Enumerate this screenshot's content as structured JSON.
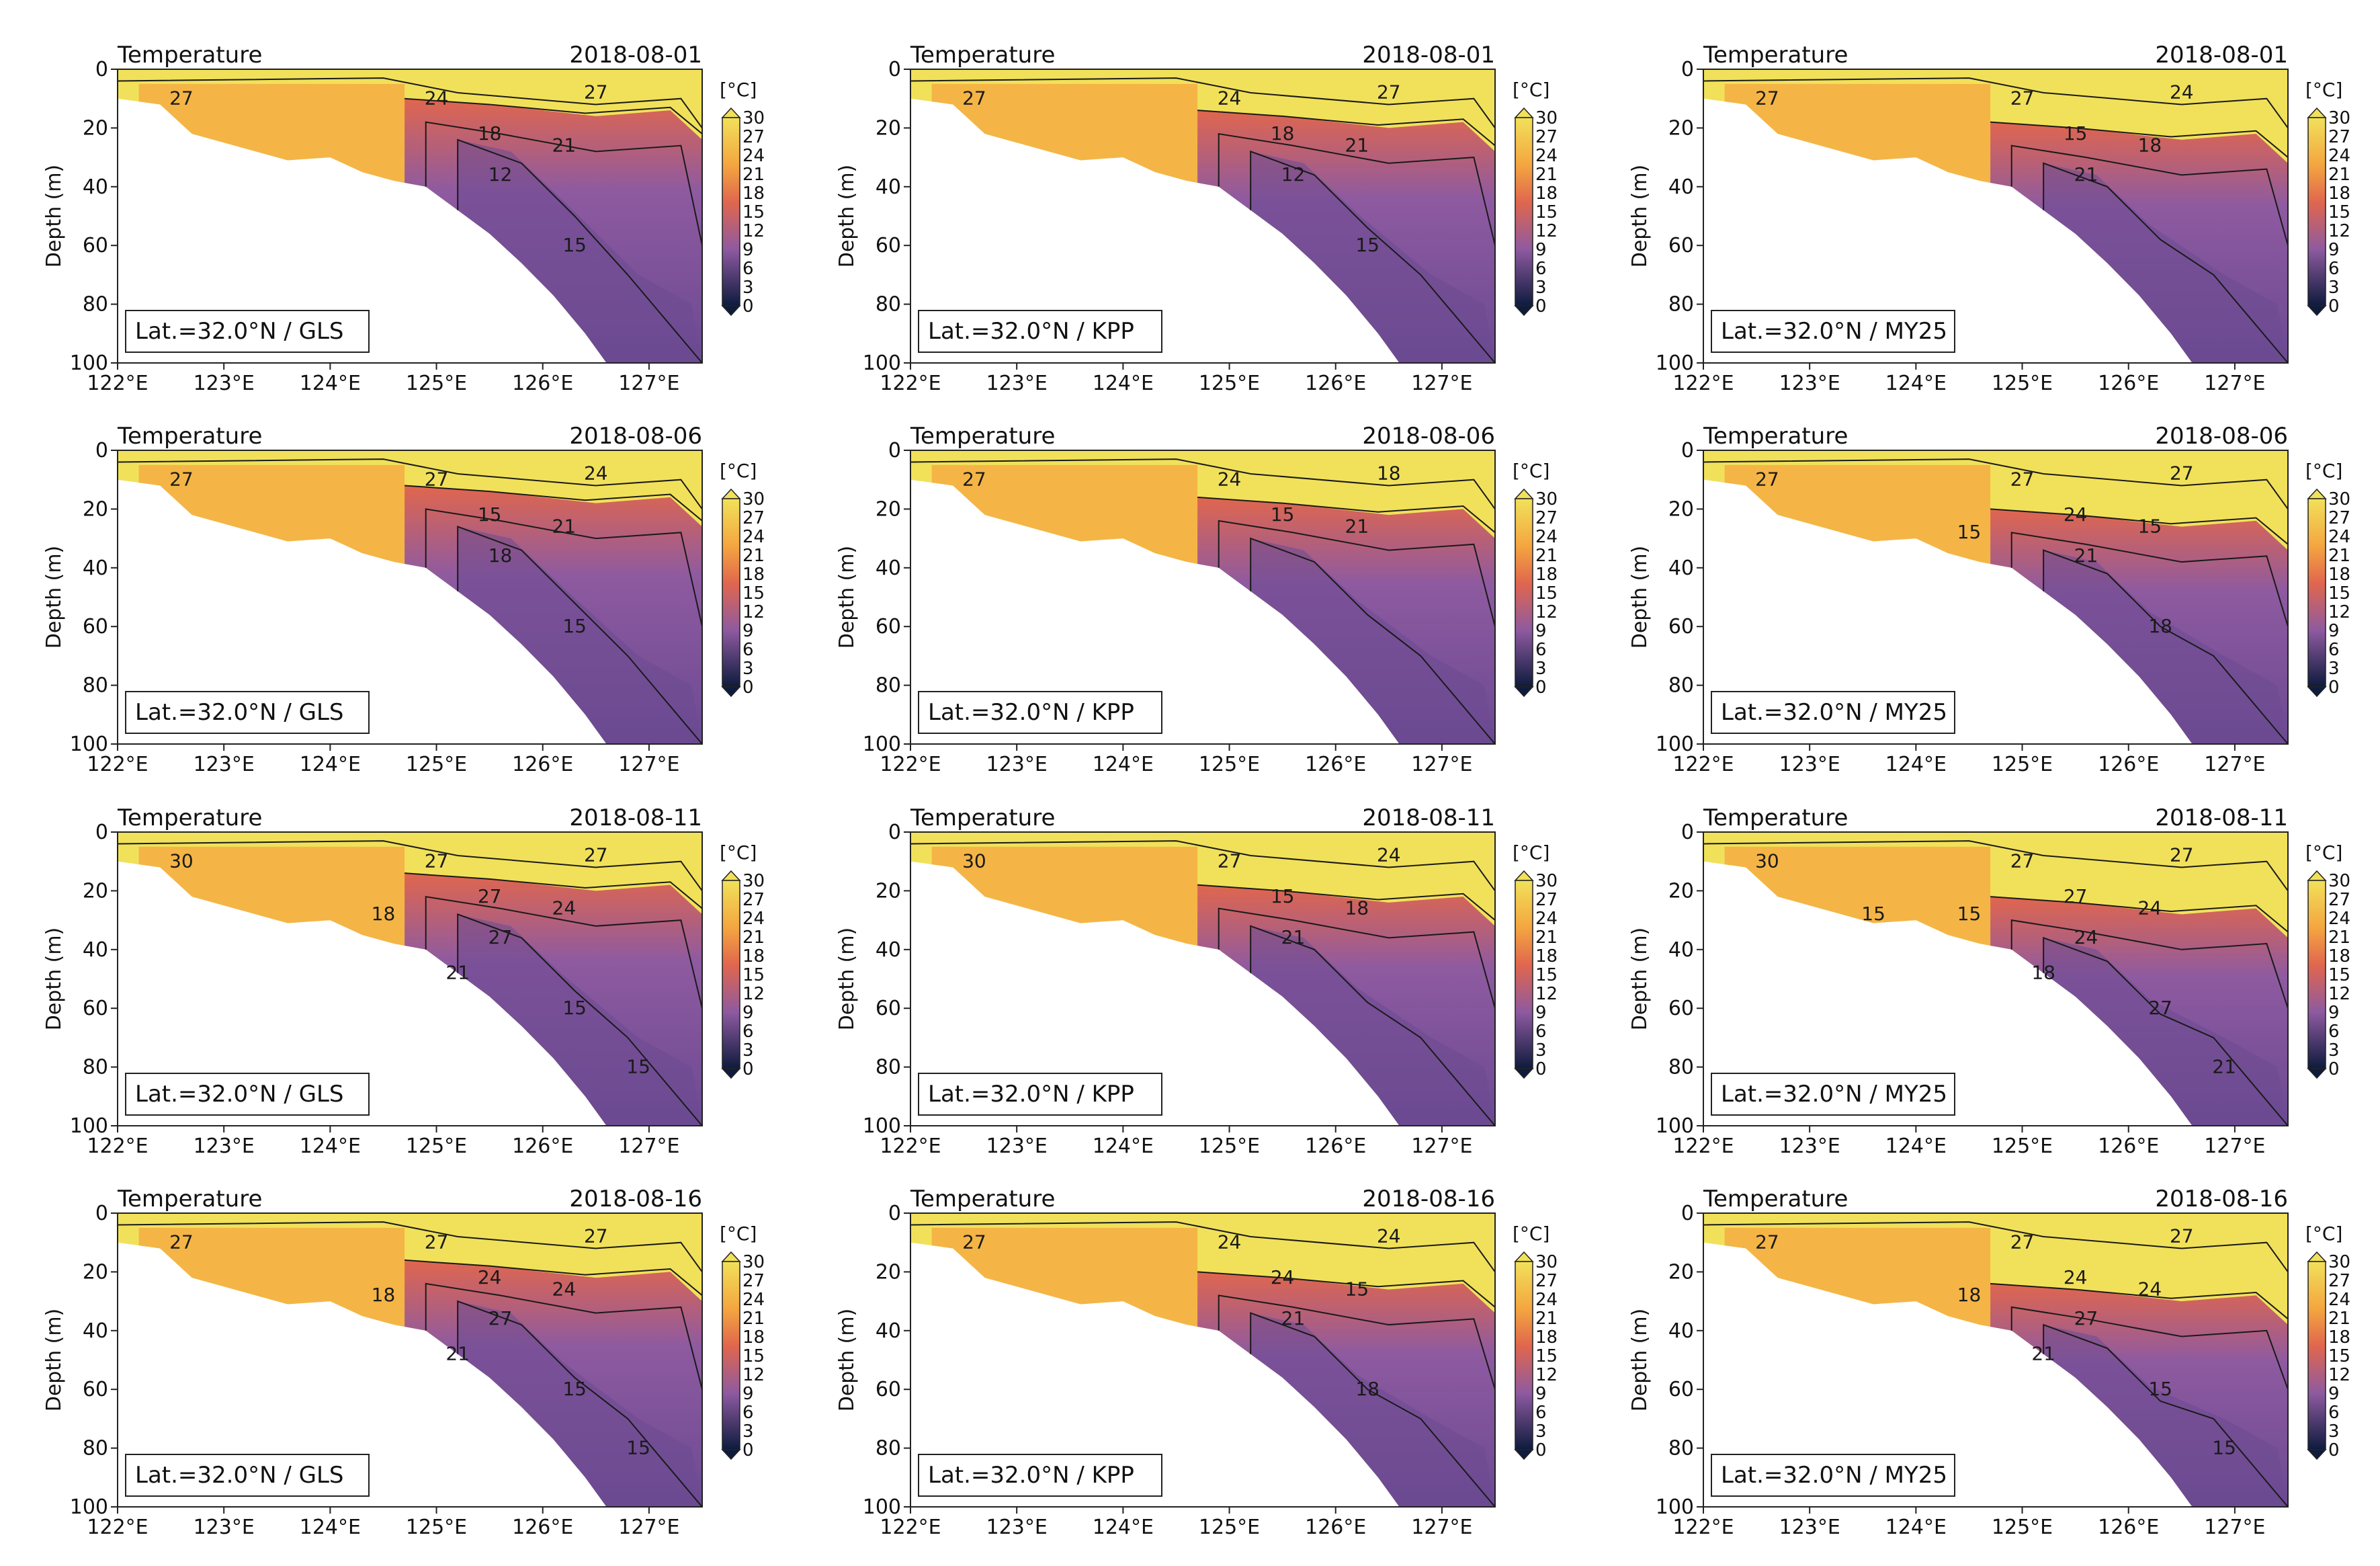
{
  "figure": {
    "title_left": "Temperature",
    "ylabel": "Depth (m)",
    "unit_label": "[°C]",
    "colorbar_ticks": [
      "30",
      "27",
      "24",
      "21",
      "18",
      "15",
      "12",
      "9",
      "6",
      "3",
      "0"
    ],
    "colors": {
      "surface_warm": "#f1e15a",
      "mid_orange": "#f4a640",
      "thermocline": "#e0664e",
      "deep_cool": "#8e5aa0",
      "deepest": "#6b4a92",
      "cbar_low": "#0d1b3d"
    }
  },
  "chart_data": [
    {
      "type": "heatmap",
      "panel": "r1c1",
      "date": "2018-08-01",
      "label": "Lat.=32.0°N / GLS",
      "model": "GLS",
      "x_range_E": [
        122,
        127.5
      ],
      "y_range_m": [
        100,
        0
      ],
      "xticks": [
        "122°E",
        "123°E",
        "124°E",
        "125°E",
        "126°E",
        "127°E"
      ],
      "yticks": [
        "0",
        "20",
        "40",
        "60",
        "80",
        "100"
      ],
      "colorbar_range_C": [
        0,
        30
      ],
      "contour_labels": [
        "27",
        "24",
        "27",
        "18",
        "21",
        "12",
        "15"
      ]
    },
    {
      "type": "heatmap",
      "panel": "r1c2",
      "date": "2018-08-01",
      "label": "Lat.=32.0°N / KPP",
      "model": "KPP",
      "x_range_E": [
        122,
        127.5
      ],
      "y_range_m": [
        100,
        0
      ],
      "xticks": [
        "122°E",
        "123°E",
        "124°E",
        "125°E",
        "126°E",
        "127°E"
      ],
      "yticks": [
        "0",
        "20",
        "40",
        "60",
        "80",
        "100"
      ],
      "colorbar_range_C": [
        0,
        30
      ],
      "contour_labels": [
        "27",
        "24",
        "27",
        "18",
        "21",
        "12",
        "15"
      ]
    },
    {
      "type": "heatmap",
      "panel": "r1c3",
      "date": "2018-08-01",
      "label": "Lat.=32.0°N / MY25",
      "model": "MY25",
      "x_range_E": [
        122,
        127.5
      ],
      "y_range_m": [
        100,
        0
      ],
      "xticks": [
        "122°E",
        "123°E",
        "124°E",
        "125°E",
        "126°E",
        "127°E"
      ],
      "yticks": [
        "0",
        "20",
        "40",
        "60",
        "80",
        "100"
      ],
      "colorbar_range_C": [
        0,
        30
      ],
      "contour_labels": [
        "27",
        "27",
        "24",
        "15",
        "18",
        "21"
      ]
    },
    {
      "type": "heatmap",
      "panel": "r2c1",
      "date": "2018-08-06",
      "label": "Lat.=32.0°N / GLS",
      "model": "GLS",
      "x_range_E": [
        122,
        127.5
      ],
      "y_range_m": [
        100,
        0
      ],
      "xticks": [
        "122°E",
        "123°E",
        "124°E",
        "125°E",
        "126°E",
        "127°E"
      ],
      "yticks": [
        "0",
        "20",
        "40",
        "60",
        "80",
        "100"
      ],
      "colorbar_range_C": [
        0,
        30
      ],
      "contour_labels": [
        "27",
        "27",
        "24",
        "15",
        "21",
        "18",
        "15"
      ]
    },
    {
      "type": "heatmap",
      "panel": "r2c2",
      "date": "2018-08-06",
      "label": "Lat.=32.0°N / KPP",
      "model": "KPP",
      "x_range_E": [
        122,
        127.5
      ],
      "y_range_m": [
        100,
        0
      ],
      "xticks": [
        "122°E",
        "123°E",
        "124°E",
        "125°E",
        "126°E",
        "127°E"
      ],
      "yticks": [
        "0",
        "20",
        "40",
        "60",
        "80",
        "100"
      ],
      "colorbar_range_C": [
        0,
        30
      ],
      "contour_labels": [
        "27",
        "24",
        "18",
        "15",
        "21"
      ]
    },
    {
      "type": "heatmap",
      "panel": "r2c3",
      "date": "2018-08-06",
      "label": "Lat.=32.0°N / MY25",
      "model": "MY25",
      "x_range_E": [
        122,
        127.5
      ],
      "y_range_m": [
        100,
        0
      ],
      "xticks": [
        "122°E",
        "123°E",
        "124°E",
        "125°E",
        "126°E",
        "127°E"
      ],
      "yticks": [
        "0",
        "20",
        "40",
        "60",
        "80",
        "100"
      ],
      "colorbar_range_C": [
        0,
        30
      ],
      "contour_labels": [
        "27",
        "27",
        "27",
        "24",
        "15",
        "21",
        "18",
        "15"
      ]
    },
    {
      "type": "heatmap",
      "panel": "r3c1",
      "date": "2018-08-11",
      "label": "Lat.=32.0°N / GLS",
      "model": "GLS",
      "x_range_E": [
        122,
        127.5
      ],
      "y_range_m": [
        100,
        0
      ],
      "xticks": [
        "122°E",
        "123°E",
        "124°E",
        "125°E",
        "126°E",
        "127°E"
      ],
      "yticks": [
        "0",
        "20",
        "40",
        "60",
        "80",
        "100"
      ],
      "colorbar_range_C": [
        0,
        30
      ],
      "contour_labels": [
        "30",
        "27",
        "27",
        "27",
        "24",
        "27",
        "15",
        "18",
        "21",
        "15"
      ]
    },
    {
      "type": "heatmap",
      "panel": "r3c2",
      "date": "2018-08-11",
      "label": "Lat.=32.0°N / KPP",
      "model": "KPP",
      "x_range_E": [
        122,
        127.5
      ],
      "y_range_m": [
        100,
        0
      ],
      "xticks": [
        "122°E",
        "123°E",
        "124°E",
        "125°E",
        "126°E",
        "127°E"
      ],
      "yticks": [
        "0",
        "20",
        "40",
        "60",
        "80",
        "100"
      ],
      "colorbar_range_C": [
        0,
        30
      ],
      "contour_labels": [
        "30",
        "27",
        "24",
        "15",
        "18",
        "21"
      ]
    },
    {
      "type": "heatmap",
      "panel": "r3c3",
      "date": "2018-08-11",
      "label": "Lat.=32.0°N / MY25",
      "model": "MY25",
      "x_range_E": [
        122,
        127.5
      ],
      "y_range_m": [
        100,
        0
      ],
      "xticks": [
        "122°E",
        "123°E",
        "124°E",
        "125°E",
        "126°E",
        "127°E"
      ],
      "yticks": [
        "0",
        "20",
        "40",
        "60",
        "80",
        "100"
      ],
      "colorbar_range_C": [
        0,
        30
      ],
      "contour_labels": [
        "30",
        "27",
        "27",
        "27",
        "24",
        "24",
        "27",
        "15",
        "18",
        "21",
        "15"
      ]
    },
    {
      "type": "heatmap",
      "panel": "r4c1",
      "date": "2018-08-16",
      "label": "Lat.=32.0°N / GLS",
      "model": "GLS",
      "x_range_E": [
        122,
        127.5
      ],
      "y_range_m": [
        100,
        0
      ],
      "xticks": [
        "122°E",
        "123°E",
        "124°E",
        "125°E",
        "126°E",
        "127°E"
      ],
      "yticks": [
        "0",
        "20",
        "40",
        "60",
        "80",
        "100"
      ],
      "colorbar_range_C": [
        0,
        30
      ],
      "contour_labels": [
        "27",
        "27",
        "27",
        "24",
        "24",
        "27",
        "15",
        "18",
        "21",
        "15"
      ]
    },
    {
      "type": "heatmap",
      "panel": "r4c2",
      "date": "2018-08-16",
      "label": "Lat.=32.0°N / KPP",
      "model": "KPP",
      "x_range_E": [
        122,
        127.5
      ],
      "y_range_m": [
        100,
        0
      ],
      "xticks": [
        "122°E",
        "123°E",
        "124°E",
        "125°E",
        "126°E",
        "127°E"
      ],
      "yticks": [
        "0",
        "20",
        "40",
        "60",
        "80",
        "100"
      ],
      "colorbar_range_C": [
        0,
        30
      ],
      "contour_labels": [
        "27",
        "24",
        "24",
        "24",
        "15",
        "21",
        "18"
      ]
    },
    {
      "type": "heatmap",
      "panel": "r4c3",
      "date": "2018-08-16",
      "label": "Lat.=32.0°N / MY25",
      "model": "MY25",
      "x_range_E": [
        122,
        127.5
      ],
      "y_range_m": [
        100,
        0
      ],
      "xticks": [
        "122°E",
        "123°E",
        "124°E",
        "125°E",
        "126°E",
        "127°E"
      ],
      "yticks": [
        "0",
        "20",
        "40",
        "60",
        "80",
        "100"
      ],
      "colorbar_range_C": [
        0,
        30
      ],
      "contour_labels": [
        "27",
        "27",
        "27",
        "24",
        "24",
        "27",
        "15",
        "18",
        "21",
        "15"
      ]
    }
  ]
}
